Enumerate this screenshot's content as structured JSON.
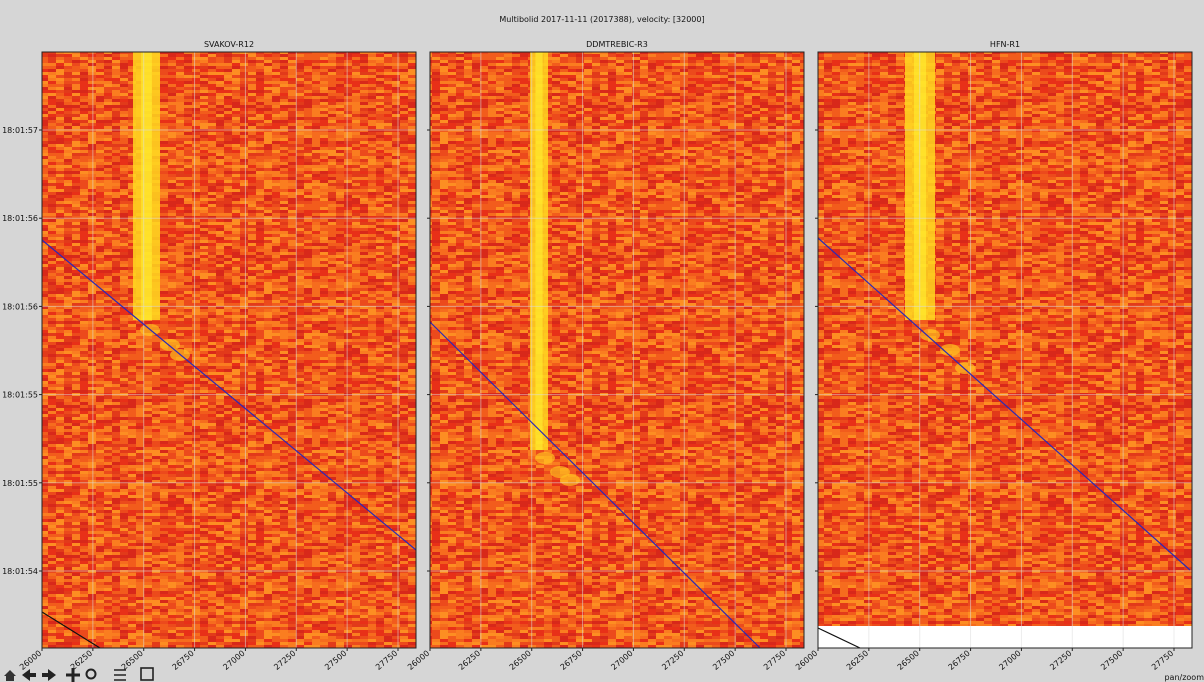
{
  "window": {
    "title": "Multibolid 2017-11-11 (2017388), velocity: [32000]"
  },
  "panels": [
    {
      "title": "SVAKOV-R12"
    },
    {
      "title": "DDMTREBIC-R3"
    },
    {
      "title": "HFN-R1"
    }
  ],
  "xticks": [
    26000,
    26250,
    26500,
    26750,
    27000,
    27250,
    27500,
    27750
  ],
  "yticks": [
    "18:01:57",
    "18:01:56",
    "18:01:56",
    "18:01:55",
    "18:01:55",
    "18:01:54"
  ],
  "toolbar": {
    "status": "pan/zoom"
  }
}
